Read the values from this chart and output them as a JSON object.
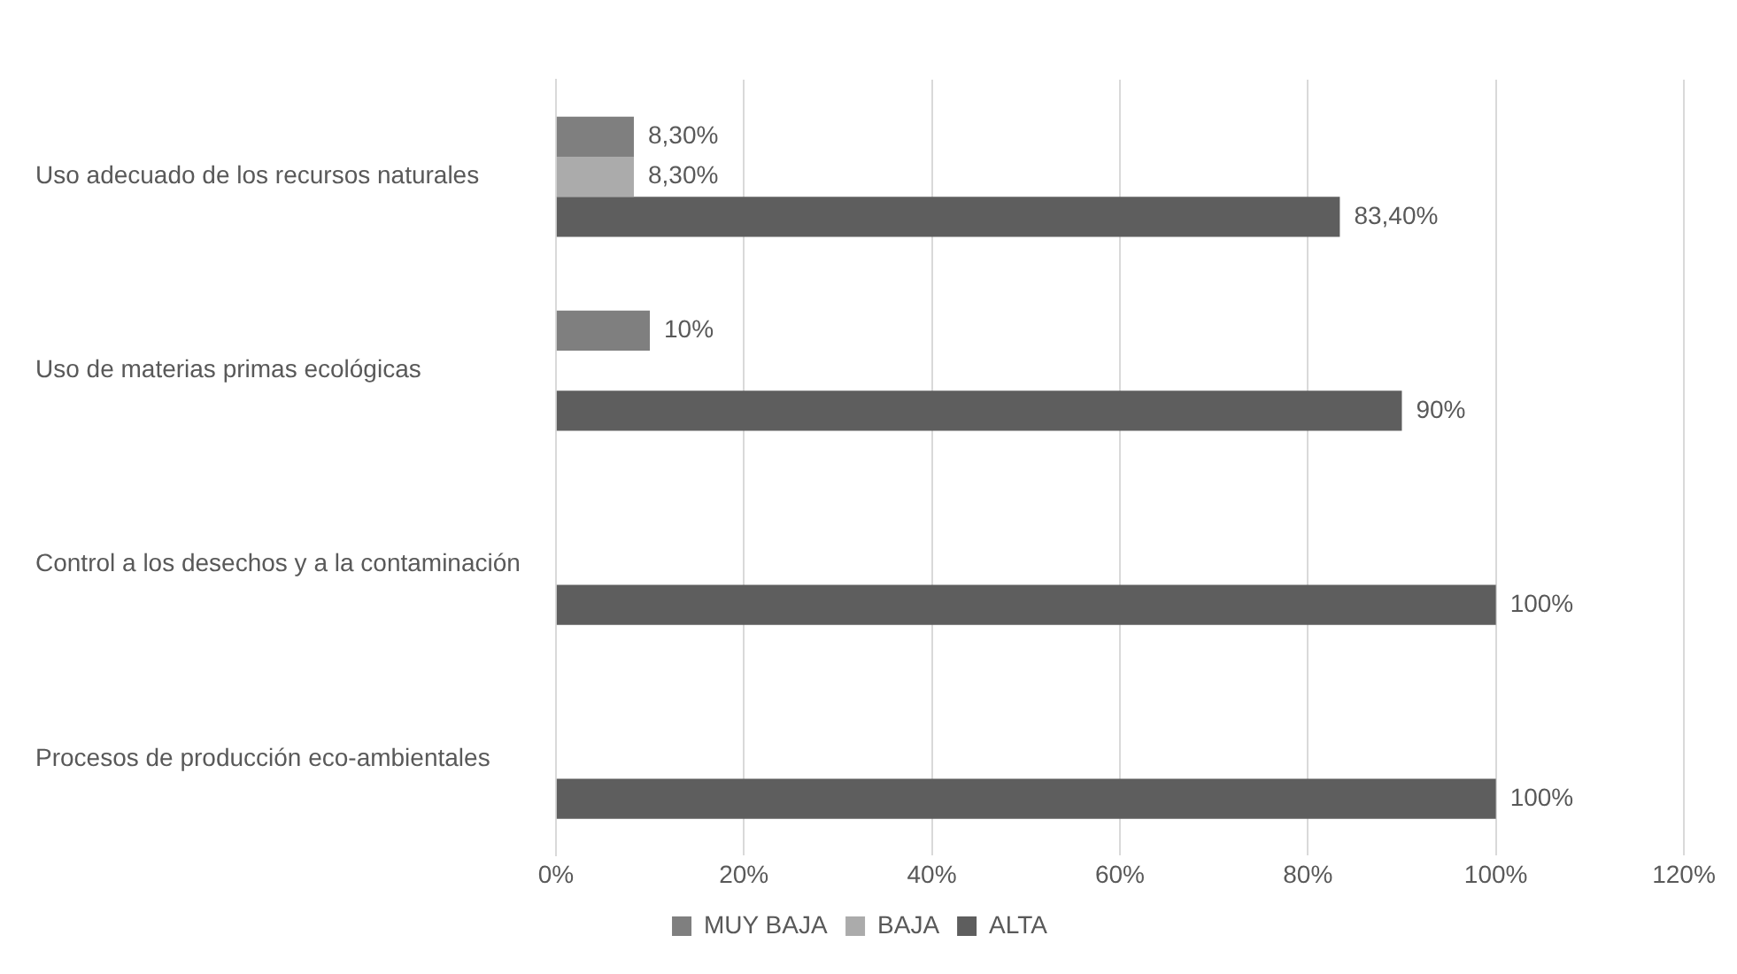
{
  "chart_data": {
    "type": "bar",
    "orientation": "horizontal",
    "categories": [
      "Uso adecuado de los recursos naturales",
      "Uso de materias primas ecológicas",
      "Control a los desechos y a la contaminación",
      "Procesos de producción eco-ambientales"
    ],
    "series": [
      {
        "name": "MUY BAJA",
        "color": "#7f7f7f",
        "values": [
          8.3,
          10,
          null,
          null
        ],
        "value_labels": [
          "8,30%",
          "10%",
          null,
          null
        ]
      },
      {
        "name": "BAJA",
        "color": "#ababab",
        "values": [
          8.3,
          null,
          null,
          null
        ],
        "value_labels": [
          "8,30%",
          null,
          null,
          null
        ]
      },
      {
        "name": "ALTA",
        "color": "#5e5e5e",
        "values": [
          83.4,
          90,
          100,
          100
        ],
        "value_labels": [
          "83,40%",
          "90%",
          "100%",
          "100%"
        ]
      }
    ],
    "xlim": [
      0,
      120
    ],
    "xticks": [
      {
        "value": 0,
        "label": "0%"
      },
      {
        "value": 20,
        "label": "20%"
      },
      {
        "value": 40,
        "label": "40%"
      },
      {
        "value": 60,
        "label": "60%"
      },
      {
        "value": 80,
        "label": "80%"
      },
      {
        "value": 100,
        "label": "100%"
      },
      {
        "value": 120,
        "label": "120%"
      }
    ],
    "grid": "x",
    "legend": "bottom"
  }
}
